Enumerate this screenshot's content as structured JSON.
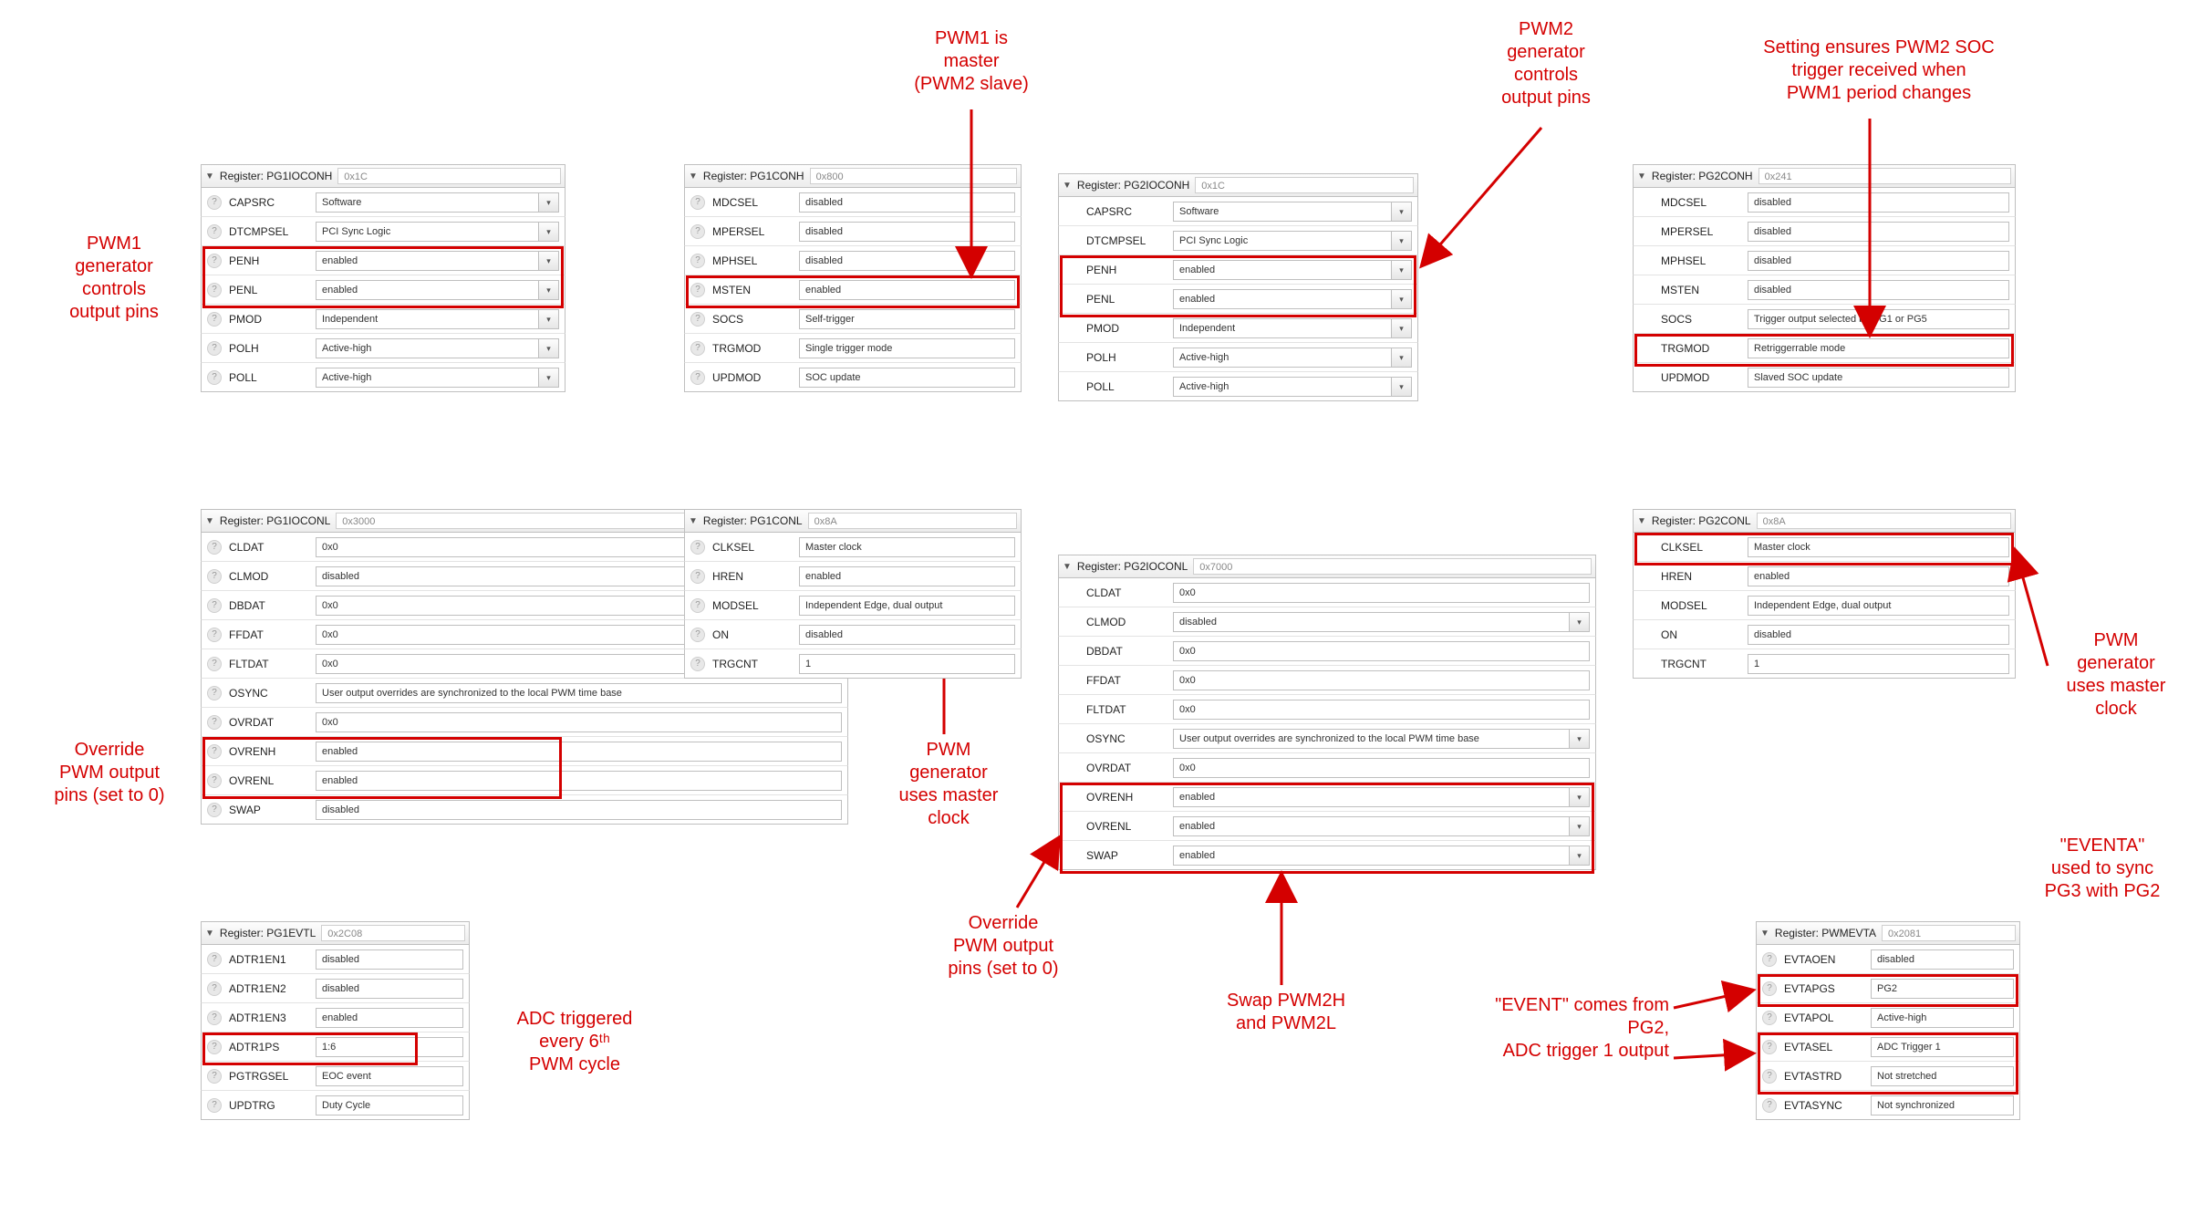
{
  "panels": {
    "pg1ioconh": {
      "title": "Register: PG1IOCONH",
      "hex": "0x1C",
      "rows": [
        {
          "n": "CAPSRC",
          "v": "Software",
          "dd": true
        },
        {
          "n": "DTCMPSEL",
          "v": "PCI Sync Logic",
          "dd": true
        },
        {
          "n": "PENH",
          "v": "enabled",
          "dd": true
        },
        {
          "n": "PENL",
          "v": "enabled",
          "dd": true
        },
        {
          "n": "PMOD",
          "v": "Independent",
          "dd": true
        },
        {
          "n": "POLH",
          "v": "Active-high",
          "dd": true
        },
        {
          "n": "POLL",
          "v": "Active-high",
          "dd": true
        }
      ]
    },
    "pg1ioconl": {
      "title": "Register: PG1IOCONL",
      "hex": "0x3000",
      "rows": [
        {
          "n": "CLDAT",
          "v": "0x0"
        },
        {
          "n": "CLMOD",
          "v": "disabled"
        },
        {
          "n": "DBDAT",
          "v": "0x0"
        },
        {
          "n": "FFDAT",
          "v": "0x0"
        },
        {
          "n": "FLTDAT",
          "v": "0x0"
        },
        {
          "n": "OSYNC",
          "v": "User output overrides are synchronized to the local PWM time base"
        },
        {
          "n": "OVRDAT",
          "v": "0x0"
        },
        {
          "n": "OVRENH",
          "v": "enabled"
        },
        {
          "n": "OVRENL",
          "v": "enabled"
        },
        {
          "n": "SWAP",
          "v": "disabled"
        }
      ]
    },
    "pg1evtl": {
      "title": "Register: PG1EVTL",
      "hex": "0x2C08",
      "rows": [
        {
          "n": "ADTR1EN1",
          "v": "disabled"
        },
        {
          "n": "ADTR1EN2",
          "v": "disabled"
        },
        {
          "n": "ADTR1EN3",
          "v": "enabled"
        },
        {
          "n": "ADTR1PS",
          "v": "1:6"
        },
        {
          "n": "PGTRGSEL",
          "v": "EOC event"
        },
        {
          "n": "UPDTRG",
          "v": "Duty Cycle"
        }
      ]
    },
    "pg1conh": {
      "title": "Register: PG1CONH",
      "hex": "0x800",
      "rows": [
        {
          "n": "MDCSEL",
          "v": "disabled"
        },
        {
          "n": "MPERSEL",
          "v": "disabled"
        },
        {
          "n": "MPHSEL",
          "v": "disabled"
        },
        {
          "n": "MSTEN",
          "v": "enabled"
        },
        {
          "n": "SOCS",
          "v": "Self-trigger"
        },
        {
          "n": "TRGMOD",
          "v": "Single trigger mode"
        },
        {
          "n": "UPDMOD",
          "v": "SOC update"
        }
      ]
    },
    "pg1conl": {
      "title": "Register: PG1CONL",
      "hex": "0x8A",
      "rows": [
        {
          "n": "CLKSEL",
          "v": "Master clock"
        },
        {
          "n": "HREN",
          "v": "enabled"
        },
        {
          "n": "MODSEL",
          "v": "Independent Edge, dual output"
        },
        {
          "n": "ON",
          "v": "disabled"
        },
        {
          "n": "TRGCNT",
          "v": "1"
        }
      ]
    },
    "pg2ioconh": {
      "title": "Register: PG2IOCONH",
      "hex": "0x1C",
      "rows": [
        {
          "n": "CAPSRC",
          "v": "Software",
          "dd": true
        },
        {
          "n": "DTCMPSEL",
          "v": "PCI Sync Logic",
          "dd": true
        },
        {
          "n": "PENH",
          "v": "enabled",
          "dd": true
        },
        {
          "n": "PENL",
          "v": "enabled",
          "dd": true
        },
        {
          "n": "PMOD",
          "v": "Independent",
          "dd": true
        },
        {
          "n": "POLH",
          "v": "Active-high",
          "dd": true
        },
        {
          "n": "POLL",
          "v": "Active-high",
          "dd": true
        }
      ]
    },
    "pg2ioconl": {
      "title": "Register: PG2IOCONL",
      "hex": "0x7000",
      "rows": [
        {
          "n": "CLDAT",
          "v": "0x0"
        },
        {
          "n": "CLMOD",
          "v": "disabled",
          "dd": true
        },
        {
          "n": "DBDAT",
          "v": "0x0"
        },
        {
          "n": "FFDAT",
          "v": "0x0"
        },
        {
          "n": "FLTDAT",
          "v": "0x0"
        },
        {
          "n": "OSYNC",
          "v": "User output overrides are synchronized to the local PWM time base",
          "dd": true
        },
        {
          "n": "OVRDAT",
          "v": "0x0"
        },
        {
          "n": "OVRENH",
          "v": "enabled",
          "dd": true
        },
        {
          "n": "OVRENL",
          "v": "enabled",
          "dd": true
        },
        {
          "n": "SWAP",
          "v": "enabled",
          "dd": true
        }
      ]
    },
    "pg2conh": {
      "title": "Register: PG2CONH",
      "hex": "0x241",
      "rows": [
        {
          "n": "MDCSEL",
          "v": "disabled"
        },
        {
          "n": "MPERSEL",
          "v": "disabled"
        },
        {
          "n": "MPHSEL",
          "v": "disabled"
        },
        {
          "n": "MSTEN",
          "v": "disabled"
        },
        {
          "n": "SOCS",
          "v": "Trigger output selected by PG1 or PG5"
        },
        {
          "n": "TRGMOD",
          "v": "Retriggerrable mode"
        },
        {
          "n": "UPDMOD",
          "v": "Slaved SOC update"
        }
      ]
    },
    "pg2conl": {
      "title": "Register: PG2CONL",
      "hex": "0x8A",
      "rows": [
        {
          "n": "CLKSEL",
          "v": "Master clock"
        },
        {
          "n": "HREN",
          "v": "enabled"
        },
        {
          "n": "MODSEL",
          "v": "Independent Edge, dual output"
        },
        {
          "n": "ON",
          "v": "disabled"
        },
        {
          "n": "TRGCNT",
          "v": "1"
        }
      ]
    },
    "pwmevta": {
      "title": "Register: PWMEVTA",
      "hex": "0x2081",
      "rows": [
        {
          "n": "EVTAOEN",
          "v": "disabled"
        },
        {
          "n": "EVTAPGS",
          "v": "PG2"
        },
        {
          "n": "EVTAPOL",
          "v": "Active-high"
        },
        {
          "n": "EVTASEL",
          "v": "ADC Trigger 1"
        },
        {
          "n": "EVTASTRD",
          "v": "Not stretched"
        },
        {
          "n": "EVTASYNC",
          "v": "Not synchronized"
        }
      ]
    }
  },
  "ann": {
    "a1": "PWM1 is\nmaster\n(PWM2 slave)",
    "a2": "PWM2\ngenerator\ncontrols\noutput pins",
    "a3": "Setting ensures PWM2 SOC\ntrigger received when\nPWM1 period changes",
    "a4": "PWM1\ngenerator\ncontrols\noutput pins",
    "a5": "Override\nPWM output\npins (set to 0)",
    "a6": "ADC triggered\nevery 6ᵗʰ\nPWM cycle",
    "a7": "PWM\ngenerator\nuses master\nclock",
    "a8": "Override\nPWM output\npins (set to 0)",
    "a9": "Swap PWM2H\nand PWM2L",
    "a10": "\"EVENT\" comes from\nPG2,\nADC trigger 1 output",
    "a11": "\"EVENTA\"\nused to sync\nPG3 with PG2",
    "a12": "PWM\ngenerator\nuses master\nclock"
  }
}
